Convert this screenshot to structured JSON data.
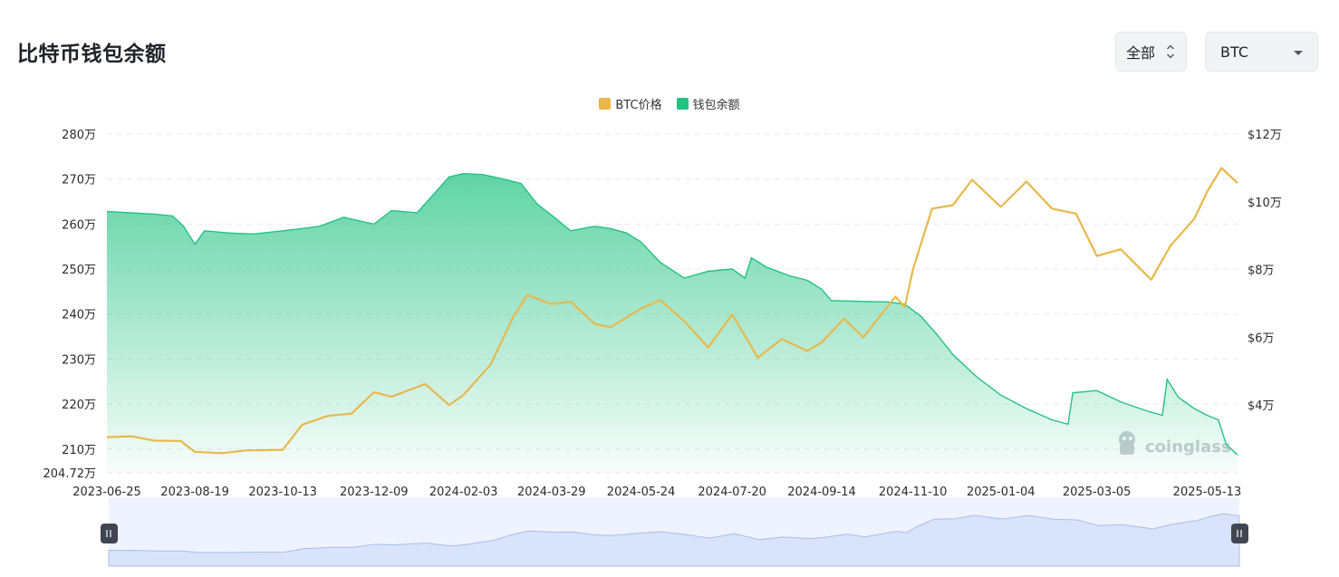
{
  "header": {
    "title": "比特币钱包余额"
  },
  "controls": {
    "range": {
      "value": "全部"
    },
    "asset": {
      "value": "BTC"
    }
  },
  "watermark": {
    "text": "coinglass"
  },
  "colors": {
    "price": "#e8b84b",
    "balance": "#22c283",
    "grid": "#e8eaee",
    "zoom_bg": "#eef3ff",
    "zoom_fill": "#d9e3fb",
    "zoom_line": "#a9bde9"
  },
  "chart_data": {
    "type": "line",
    "title": "比特币钱包余额",
    "legend": {
      "placement": "top-center",
      "entries": [
        "BTC价格",
        "钱包余额"
      ]
    },
    "y_left": {
      "min": 2047200,
      "max": 2800000,
      "ticks": [
        2800000,
        2700000,
        2600000,
        2500000,
        2400000,
        2300000,
        2200000,
        2100000,
        2047200
      ],
      "tick_labels": [
        "280万",
        "270万",
        "260万",
        "250万",
        "240万",
        "230万",
        "220万",
        "210万",
        "204.72万"
      ]
    },
    "y_right": {
      "min": 20000,
      "max": 120000,
      "ticks": [
        120000,
        100000,
        80000,
        60000,
        40000
      ],
      "tick_labels": [
        "$12万",
        "$10万",
        "$8万",
        "$6万",
        "$4万"
      ]
    },
    "x": {
      "start": "2023-06-25",
      "end": "2025-06-01",
      "ticks": [
        "2023-06-25",
        "2023-08-19",
        "2023-10-13",
        "2023-12-09",
        "2024-02-03",
        "2024-03-29",
        "2024-05-24",
        "2024-07-20",
        "2024-09-14",
        "2024-11-10",
        "2025-01-04",
        "2025-03-05",
        "2025-05-13"
      ]
    },
    "grid": true,
    "series": [
      {
        "name": "钱包余额",
        "axis": "left",
        "kind": "area",
        "points": [
          [
            "2023-06-25",
            2628000
          ],
          [
            "2023-07-10",
            2625000
          ],
          [
            "2023-07-25",
            2622000
          ],
          [
            "2023-08-05",
            2618000
          ],
          [
            "2023-08-12",
            2595000
          ],
          [
            "2023-08-19",
            2555000
          ],
          [
            "2023-08-25",
            2585000
          ],
          [
            "2023-09-10",
            2580000
          ],
          [
            "2023-09-25",
            2578000
          ],
          [
            "2023-10-13",
            2585000
          ],
          [
            "2023-10-25",
            2590000
          ],
          [
            "2023-11-05",
            2595000
          ],
          [
            "2023-11-20",
            2615000
          ],
          [
            "2023-12-09",
            2600000
          ],
          [
            "2023-12-20",
            2630000
          ],
          [
            "2024-01-05",
            2625000
          ],
          [
            "2024-01-15",
            2665000
          ],
          [
            "2024-01-25",
            2705000
          ],
          [
            "2024-02-03",
            2712000
          ],
          [
            "2024-02-15",
            2710000
          ],
          [
            "2024-02-28",
            2700000
          ],
          [
            "2024-03-10",
            2690000
          ],
          [
            "2024-03-20",
            2645000
          ],
          [
            "2024-03-29",
            2620000
          ],
          [
            "2024-04-10",
            2585000
          ],
          [
            "2024-04-25",
            2595000
          ],
          [
            "2024-05-05",
            2590000
          ],
          [
            "2024-05-15",
            2580000
          ],
          [
            "2024-05-24",
            2560000
          ],
          [
            "2024-06-05",
            2515000
          ],
          [
            "2024-06-20",
            2480000
          ],
          [
            "2024-07-05",
            2495000
          ],
          [
            "2024-07-20",
            2500000
          ],
          [
            "2024-07-28",
            2480000
          ],
          [
            "2024-08-01",
            2525000
          ],
          [
            "2024-08-10",
            2505000
          ],
          [
            "2024-08-25",
            2485000
          ],
          [
            "2024-09-05",
            2475000
          ],
          [
            "2024-09-14",
            2455000
          ],
          [
            "2024-09-20",
            2430000
          ],
          [
            "2024-10-10",
            2428000
          ],
          [
            "2024-10-25",
            2427000
          ],
          [
            "2024-11-05",
            2422000
          ],
          [
            "2024-11-15",
            2395000
          ],
          [
            "2024-11-25",
            2355000
          ],
          [
            "2024-12-05",
            2310000
          ],
          [
            "2024-12-20",
            2260000
          ],
          [
            "2025-01-04",
            2220000
          ],
          [
            "2025-01-20",
            2190000
          ],
          [
            "2025-02-05",
            2165000
          ],
          [
            "2025-02-15",
            2155000
          ],
          [
            "2025-02-18",
            2225000
          ],
          [
            "2025-03-05",
            2230000
          ],
          [
            "2025-03-20",
            2205000
          ],
          [
            "2025-04-05",
            2185000
          ],
          [
            "2025-04-15",
            2175000
          ],
          [
            "2025-04-18",
            2255000
          ],
          [
            "2025-04-25",
            2215000
          ],
          [
            "2025-05-05",
            2190000
          ],
          [
            "2025-05-13",
            2175000
          ],
          [
            "2025-05-20",
            2165000
          ],
          [
            "2025-05-25",
            2110000
          ],
          [
            "2025-06-01",
            2087000
          ]
        ]
      },
      {
        "name": "BTC价格",
        "axis": "right",
        "kind": "line",
        "points": [
          [
            "2023-06-25",
            30500
          ],
          [
            "2023-07-10",
            30800
          ],
          [
            "2023-07-25",
            29500
          ],
          [
            "2023-08-10",
            29400
          ],
          [
            "2023-08-19",
            26200
          ],
          [
            "2023-09-05",
            25800
          ],
          [
            "2023-09-20",
            26600
          ],
          [
            "2023-10-13",
            26800
          ],
          [
            "2023-10-25",
            34200
          ],
          [
            "2023-11-10",
            36800
          ],
          [
            "2023-11-25",
            37500
          ],
          [
            "2023-12-09",
            43800
          ],
          [
            "2023-12-20",
            42500
          ],
          [
            "2024-01-10",
            46200
          ],
          [
            "2024-01-25",
            40000
          ],
          [
            "2024-02-03",
            43000
          ],
          [
            "2024-02-20",
            52000
          ],
          [
            "2024-03-05",
            66000
          ],
          [
            "2024-03-14",
            72500
          ],
          [
            "2024-03-29",
            69800
          ],
          [
            "2024-04-10",
            70500
          ],
          [
            "2024-04-25",
            64000
          ],
          [
            "2024-05-05",
            63000
          ],
          [
            "2024-05-24",
            68500
          ],
          [
            "2024-06-05",
            71000
          ],
          [
            "2024-06-20",
            64800
          ],
          [
            "2024-07-05",
            57000
          ],
          [
            "2024-07-20",
            66800
          ],
          [
            "2024-08-05",
            54000
          ],
          [
            "2024-08-20",
            59500
          ],
          [
            "2024-09-05",
            56000
          ],
          [
            "2024-09-14",
            58500
          ],
          [
            "2024-09-28",
            65500
          ],
          [
            "2024-10-10",
            60000
          ],
          [
            "2024-10-30",
            72000
          ],
          [
            "2024-11-05",
            69000
          ],
          [
            "2024-11-10",
            80000
          ],
          [
            "2024-11-22",
            98000
          ],
          [
            "2024-12-05",
            99000
          ],
          [
            "2024-12-17",
            106500
          ],
          [
            "2025-01-04",
            98500
          ],
          [
            "2025-01-20",
            106000
          ],
          [
            "2025-02-05",
            98000
          ],
          [
            "2025-02-20",
            96500
          ],
          [
            "2025-03-05",
            84000
          ],
          [
            "2025-03-20",
            86000
          ],
          [
            "2025-04-08",
            77000
          ],
          [
            "2025-04-20",
            87000
          ],
          [
            "2025-05-05",
            95000
          ],
          [
            "2025-05-13",
            103000
          ],
          [
            "2025-05-22",
            110000
          ],
          [
            "2025-06-01",
            105500
          ]
        ]
      }
    ]
  }
}
